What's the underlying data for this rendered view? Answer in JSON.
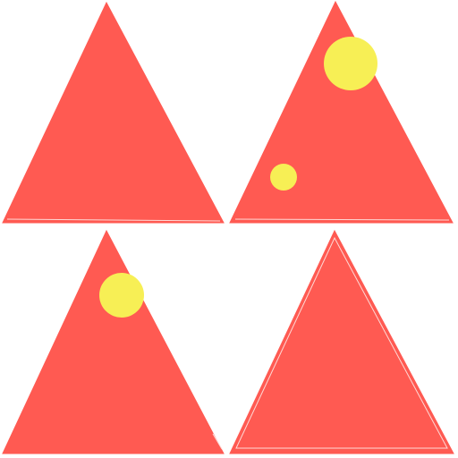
{
  "colors": {
    "background": "#ffffff",
    "triangle_fill": "#ff5a52",
    "circle_fill": "#f7ef55",
    "edge_highlight": "#ffd9d5"
  },
  "panels": [
    {
      "position": "top-left",
      "shape": "triangle",
      "circle_count": 0
    },
    {
      "position": "top-right",
      "shape": "triangle",
      "circle_count": 2
    },
    {
      "position": "bottom-left",
      "shape": "triangle",
      "circle_count": 1
    },
    {
      "position": "bottom-right",
      "shape": "triangle",
      "circle_count": 0
    }
  ]
}
